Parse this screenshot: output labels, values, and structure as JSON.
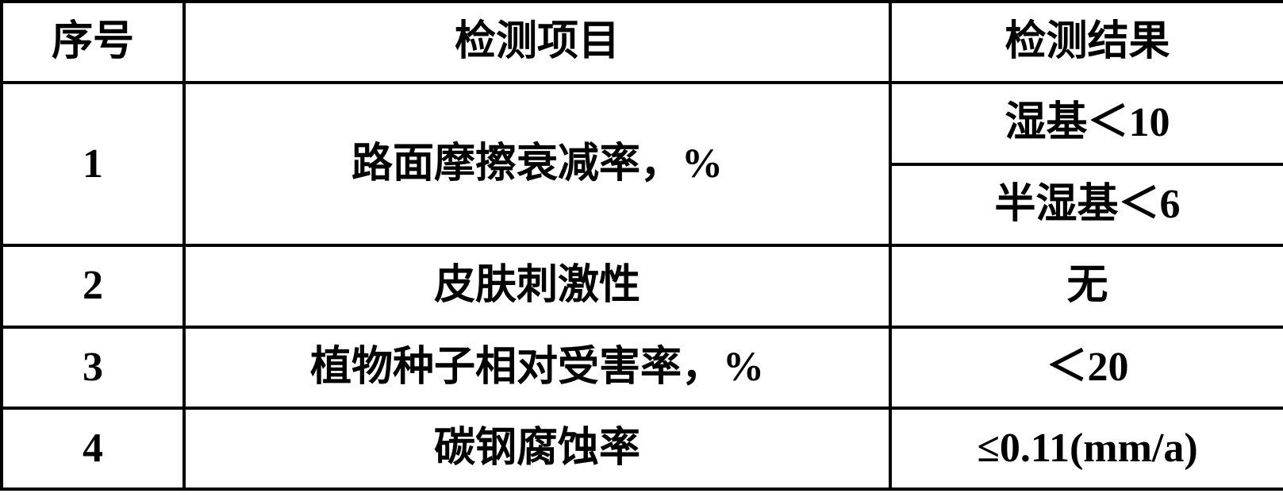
{
  "table": {
    "columns": {
      "seq": "序号",
      "item": "检测项目",
      "result": "检测结果"
    },
    "rows": [
      {
        "seq": "1",
        "item": "路面摩擦衰减率，%",
        "results": [
          "湿基＜10",
          "半湿基＜6"
        ]
      },
      {
        "seq": "2",
        "item": "皮肤刺激性",
        "results": [
          "无"
        ]
      },
      {
        "seq": "3",
        "item": "植物种子相对受害率，%",
        "results": [
          "＜20"
        ]
      },
      {
        "seq": "4",
        "item": "碳钢腐蚀率",
        "results": [
          "≤0.11(mm/a)"
        ]
      }
    ],
    "style": {
      "border_color": "#000000",
      "border_width": 4,
      "background_color": "#ffffff",
      "font_size": 52,
      "font_weight": "bold",
      "font_family_cjk": "KaiTi",
      "font_family_western": "Times New Roman",
      "text_align": "center",
      "col_widths": {
        "seq": 230,
        "item": 890,
        "result": 497
      }
    }
  }
}
